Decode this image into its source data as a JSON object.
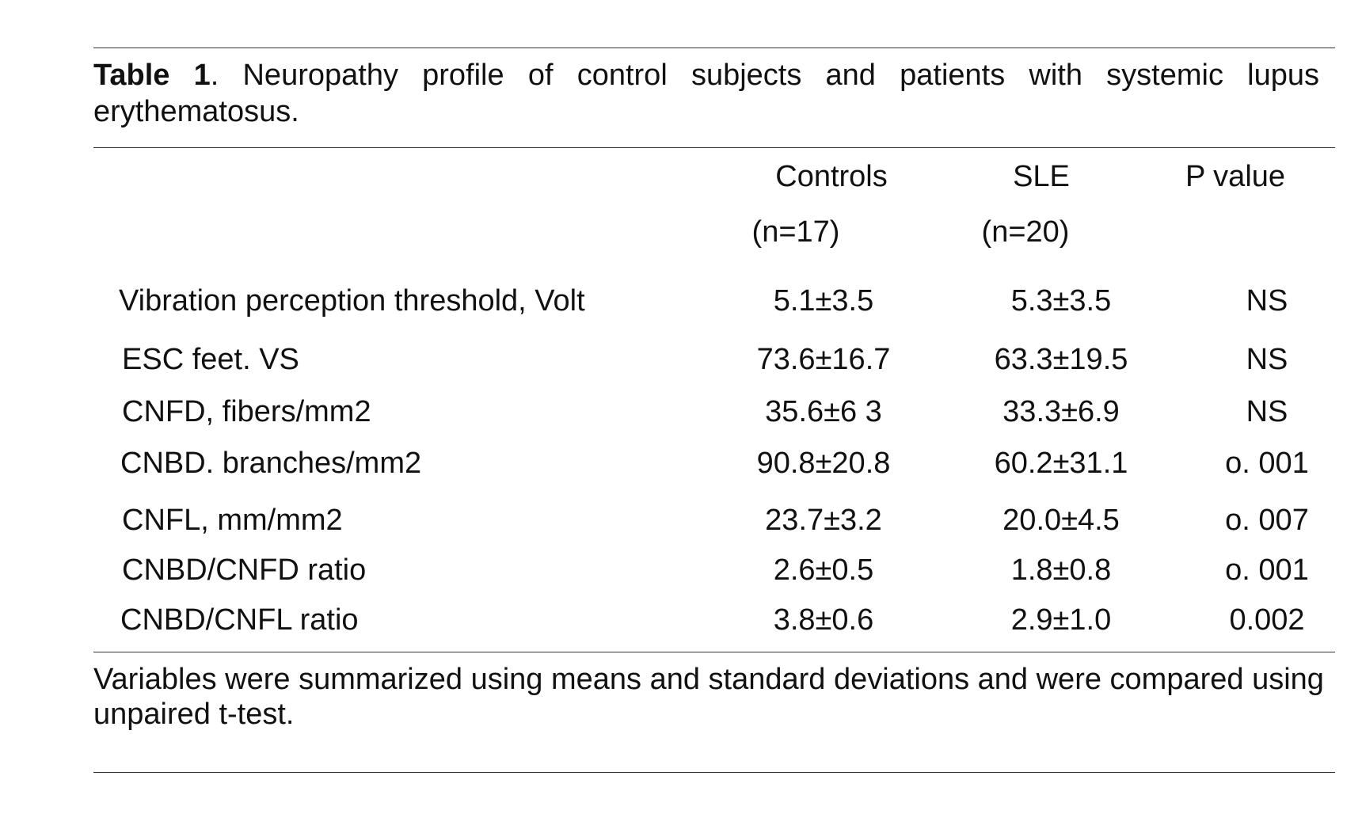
{
  "caption": {
    "label": "Table 1",
    "text": ". Neuropathy profile of control subjects and patients with systemic lupus erythematosus."
  },
  "columns": {
    "controls": "Controls",
    "controls_n": "(n=17)",
    "sle": "SLE",
    "sle_n": "(n=20)",
    "p": "P value"
  },
  "rows": [
    {
      "label": "Vibration perception threshold, Volt",
      "controls": "5.1±3.5",
      "sle": "5.3±3.5",
      "p": "NS"
    },
    {
      "label": "ESC feet. VS",
      "controls": "73.6±16.7",
      "sle": "63.3±19.5",
      "p": "NS"
    },
    {
      "label": "CNFD, fibers/mm2",
      "controls": "35.6±6 3",
      "sle": "33.3±6.9",
      "p": "NS"
    },
    {
      "label": "CNBD. branches/mm2",
      "controls": "90.8±20.8",
      "sle": "60.2±31.1",
      "p": "o. 001"
    },
    {
      "label": "CNFL, mm/mm2",
      "controls": "23.7±3.2",
      "sle": "20.0±4.5",
      "p": "o. 007"
    },
    {
      "label": "CNBD/CNFD ratio",
      "controls": "2.6±0.5",
      "sle": "1.8±0.8",
      "p": "o. 001"
    },
    {
      "label": "CNBD/CNFL ratio",
      "controls": "3.8±0.6",
      "sle": "2.9±1.0",
      "p": "0.002"
    }
  ],
  "note": "Variables were summarized using means and standard deviations and were compared using unpaired t-test."
}
